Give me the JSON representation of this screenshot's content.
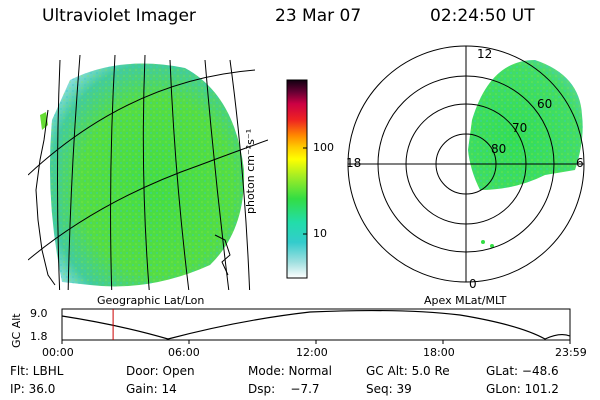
{
  "header": {
    "instrument": "Ultraviolet Imager",
    "date": "23 Mar 07",
    "time": "02:24:50 UT"
  },
  "colorbar": {
    "unit_label": "photon cm⁻²s⁻¹",
    "ticks": [
      "100",
      "10"
    ]
  },
  "left_panel": {
    "caption": "Geographic Lat/Lon"
  },
  "right_panel": {
    "caption": "Apex MLat/MLT",
    "mlt_labels": [
      "12",
      "18",
      "6",
      "0"
    ],
    "mlat_labels": [
      "60",
      "70",
      "80"
    ]
  },
  "orbit_plot": {
    "ylabel": "GC Alt",
    "y_ticks": [
      "9.0",
      "1.8"
    ],
    "x_ticks": [
      "00:00",
      "06:00",
      "12:00",
      "18:00",
      "23:59"
    ],
    "marker_time": "02:24:50",
    "marker_color": "#cc0000"
  },
  "status": {
    "flt": "Flt: LBHL",
    "door": "Door: Open",
    "mode": "Mode: Normal",
    "gc_alt": "GC Alt: 5.0 Re",
    "glat": "GLat: −48.6",
    "ip": "IP: 36.0",
    "gain": "Gain: 14",
    "dsp": "Dsp:    −7.7",
    "seq": "Seq: 39",
    "glon": "GLon: 101.2"
  },
  "colors": {
    "aurora_green": "#33dd44",
    "aurora_cyan": "#33cccc",
    "grid": "#000000"
  }
}
